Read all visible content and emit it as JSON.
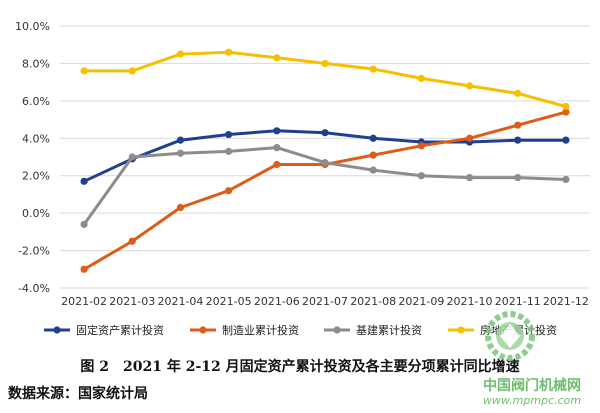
{
  "caption": "图 2　2021 年 2-12 月固定资产累计投资及各主要分项累计同比增速",
  "source": "数据来源：国家统计局",
  "watermark": {
    "text": "中国阀门机械网",
    "url": "www.mpmpc.com"
  },
  "chart_data": {
    "type": "line",
    "title": "",
    "xlabel": "",
    "ylabel": "",
    "categories": [
      "2021-02",
      "2021-03",
      "2021-04",
      "2021-05",
      "2021-06",
      "2021-07",
      "2021-08",
      "2021-09",
      "2021-10",
      "2021-11",
      "2021-12"
    ],
    "ylim": [
      -4.0,
      10.0
    ],
    "yticks": [
      "-4.0%",
      "-2.0%",
      "0.0%",
      "2.0%",
      "4.0%",
      "6.0%",
      "8.0%",
      "10.0%"
    ],
    "grid": true,
    "legend_position": "bottom",
    "series": [
      {
        "name": "固定资产累计投资",
        "color": "#1f3f8f",
        "values": [
          1.7,
          2.9,
          3.9,
          4.2,
          4.4,
          4.3,
          4.0,
          3.8,
          3.8,
          3.9,
          3.9
        ]
      },
      {
        "name": "制造业累计投资",
        "color": "#dd5c17",
        "values": [
          -3.0,
          -1.5,
          0.3,
          1.2,
          2.6,
          2.6,
          3.1,
          3.6,
          4.0,
          4.7,
          5.4
        ]
      },
      {
        "name": "基建累计投资",
        "color": "#8c8c8c",
        "values": [
          -0.6,
          3.0,
          3.2,
          3.3,
          3.5,
          2.7,
          2.3,
          2.0,
          1.9,
          1.9,
          1.8
        ]
      },
      {
        "name": "房地产累计投资",
        "color": "#f6c000",
        "values": [
          7.6,
          7.6,
          8.5,
          8.6,
          8.3,
          8.0,
          7.7,
          7.2,
          6.8,
          6.4,
          5.7
        ]
      }
    ]
  }
}
